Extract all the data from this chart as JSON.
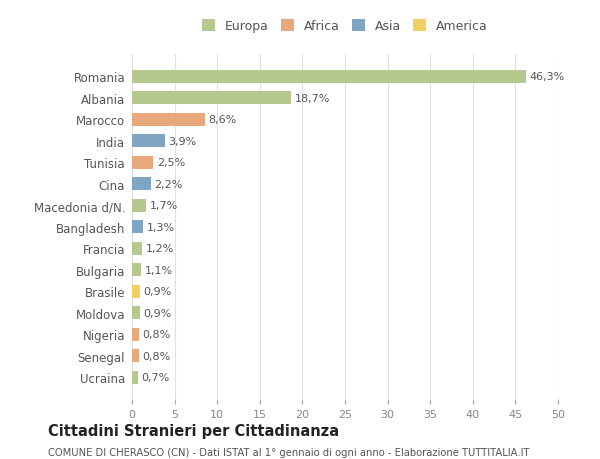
{
  "countries": [
    "Romania",
    "Albania",
    "Marocco",
    "India",
    "Tunisia",
    "Cina",
    "Macedonia d/N.",
    "Bangladesh",
    "Francia",
    "Bulgaria",
    "Brasile",
    "Moldova",
    "Nigeria",
    "Senegal",
    "Ucraina"
  ],
  "values": [
    46.3,
    18.7,
    8.6,
    3.9,
    2.5,
    2.2,
    1.7,
    1.3,
    1.2,
    1.1,
    0.9,
    0.9,
    0.8,
    0.8,
    0.7
  ],
  "labels": [
    "46,3%",
    "18,7%",
    "8,6%",
    "3,9%",
    "2,5%",
    "2,2%",
    "1,7%",
    "1,3%",
    "1,2%",
    "1,1%",
    "0,9%",
    "0,9%",
    "0,8%",
    "0,8%",
    "0,7%"
  ],
  "continents": [
    "Europa",
    "Europa",
    "Africa",
    "Asia",
    "Africa",
    "Asia",
    "Europa",
    "Asia",
    "Europa",
    "Europa",
    "America",
    "Europa",
    "Africa",
    "Africa",
    "Europa"
  ],
  "continent_colors": {
    "Europa": "#b5c98e",
    "Africa": "#e8a87c",
    "Asia": "#7ea6c4",
    "America": "#f0d060"
  },
  "legend_items": [
    "Europa",
    "Africa",
    "Asia",
    "America"
  ],
  "legend_colors": [
    "#b5c98e",
    "#e8a87c",
    "#7ea6c4",
    "#f0d060"
  ],
  "title_main": "Cittadini Stranieri per Cittadinanza",
  "title_sub": "COMUNE DI CHERASCO (CN) - Dati ISTAT al 1° gennaio di ogni anno - Elaborazione TUTTITALIA.IT",
  "xlim": [
    0,
    50
  ],
  "xticks": [
    0,
    5,
    10,
    15,
    20,
    25,
    30,
    35,
    40,
    45,
    50
  ],
  "bg_color": "#ffffff",
  "grid_color": "#e0e0e0",
  "bar_height": 0.6
}
